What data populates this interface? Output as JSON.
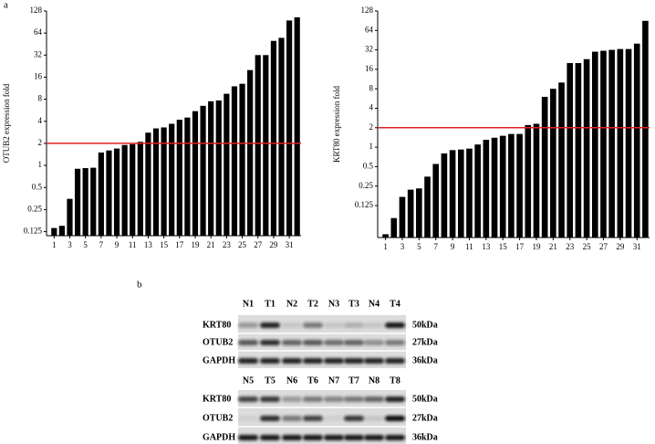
{
  "figure": {
    "panel_labels": [
      "a",
      "b"
    ]
  },
  "chart_data": [
    {
      "type": "bar",
      "y_label": "OTUB2 expression fold",
      "yscale": "log",
      "color": "#000000",
      "hline": 2,
      "hline_color": "#e02020",
      "categories": [
        1,
        null,
        3,
        null,
        5,
        null,
        7,
        null,
        9,
        null,
        11,
        null,
        13,
        null,
        15,
        null,
        17,
        null,
        19,
        null,
        21,
        null,
        23,
        null,
        25,
        null,
        27,
        null,
        29,
        null,
        31,
        null
      ],
      "values": [
        0.14,
        0.15,
        0.35,
        0.9,
        0.92,
        0.93,
        1.5,
        1.6,
        1.7,
        1.9,
        1.95,
        2.1,
        2.8,
        3.2,
        3.3,
        3.7,
        4.2,
        4.5,
        5.5,
        6.5,
        7.5,
        7.7,
        9.5,
        12,
        13,
        20,
        32,
        32,
        50,
        55,
        95,
        105
      ],
      "ylim": [
        0.11,
        128
      ],
      "yticks": [
        0.125,
        0.25,
        0.5,
        1,
        2,
        4,
        8,
        16,
        32,
        64,
        128
      ]
    },
    {
      "type": "bar",
      "y_label": "KRT80 expression fold",
      "yscale": "log",
      "color": "#000000",
      "hline": 2,
      "hline_color": "#e02020",
      "categories": [
        1,
        null,
        3,
        null,
        5,
        null,
        7,
        null,
        9,
        null,
        11,
        null,
        13,
        null,
        15,
        null,
        17,
        null,
        19,
        null,
        21,
        null,
        23,
        null,
        25,
        null,
        27,
        null,
        29,
        null,
        31,
        null
      ],
      "values": [
        0.045,
        0.08,
        0.17,
        0.22,
        0.23,
        0.35,
        0.55,
        0.8,
        0.9,
        0.92,
        0.95,
        1.1,
        1.3,
        1.4,
        1.5,
        1.6,
        1.6,
        2.2,
        2.3,
        6,
        8,
        10,
        20,
        20,
        23,
        30,
        31,
        32,
        33,
        33,
        40,
        90
      ],
      "ylim": [
        0.04,
        128
      ],
      "yticks": [
        0.125,
        0.25,
        0.5,
        1,
        2,
        4,
        8,
        16,
        32,
        64,
        128
      ]
    }
  ],
  "blot": {
    "panels": [
      {
        "lanes": [
          "N1",
          "T1",
          "N2",
          "T2",
          "N3",
          "T3",
          "N4",
          "T4"
        ],
        "rows": [
          {
            "protein": "KRT80",
            "size": "50kDa"
          },
          {
            "protein": "OTUB2",
            "size": "27kDa"
          },
          {
            "protein": "GAPDH",
            "size": "36kDa"
          }
        ]
      },
      {
        "lanes": [
          "N5",
          "T5",
          "N6",
          "T6",
          "N7",
          "T7",
          "N8",
          "T8"
        ],
        "rows": [
          {
            "protein": "KRT80",
            "size": "50kDa"
          },
          {
            "protein": "OTUB2",
            "size": "27kDa"
          },
          {
            "protein": "GAPDH",
            "size": "36kDa"
          }
        ]
      }
    ]
  }
}
